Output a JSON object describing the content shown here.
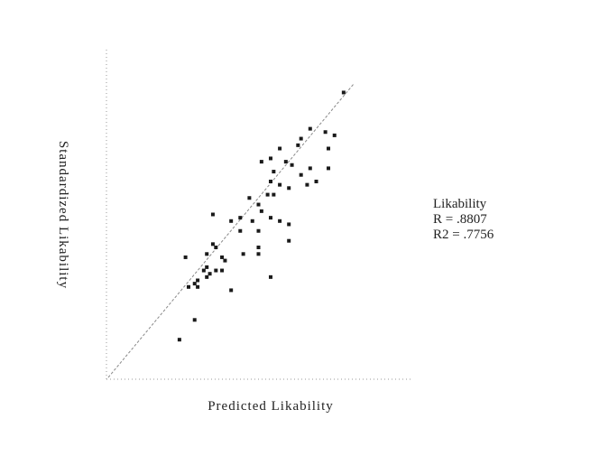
{
  "chart_data": {
    "type": "scatter",
    "x_label": "Predicted Likability",
    "y_label": "Standardized Likability",
    "annotations": [
      "Likability",
      "R  =  .8807",
      "R2 = .7756"
    ],
    "color": "#1a1a1a",
    "xlim": [
      0,
      1
    ],
    "ylim": [
      0,
      1
    ],
    "x": [
      0.78,
      0.67,
      0.72,
      0.75,
      0.64,
      0.63,
      0.73,
      0.57,
      0.54,
      0.51,
      0.59,
      0.61,
      0.55,
      0.67,
      0.64,
      0.73,
      0.54,
      0.57,
      0.6,
      0.66,
      0.69,
      0.53,
      0.55,
      0.5,
      0.47,
      0.51,
      0.44,
      0.48,
      0.54,
      0.57,
      0.6,
      0.35,
      0.41,
      0.44,
      0.5,
      0.6,
      0.35,
      0.36,
      0.38,
      0.33,
      0.39,
      0.5,
      0.45,
      0.5,
      0.33,
      0.36,
      0.32,
      0.34,
      0.38,
      0.26,
      0.29,
      0.3,
      0.3,
      0.27,
      0.41,
      0.54,
      0.33,
      0.29,
      0.24
    ],
    "values": [
      0.87,
      0.76,
      0.75,
      0.74,
      0.73,
      0.71,
      0.7,
      0.7,
      0.67,
      0.66,
      0.66,
      0.65,
      0.63,
      0.64,
      0.62,
      0.64,
      0.6,
      0.59,
      0.58,
      0.59,
      0.6,
      0.56,
      0.56,
      0.53,
      0.55,
      0.51,
      0.49,
      0.48,
      0.49,
      0.48,
      0.47,
      0.5,
      0.48,
      0.45,
      0.45,
      0.42,
      0.41,
      0.4,
      0.37,
      0.38,
      0.36,
      0.4,
      0.38,
      0.38,
      0.34,
      0.33,
      0.33,
      0.32,
      0.33,
      0.37,
      0.29,
      0.28,
      0.3,
      0.28,
      0.27,
      0.31,
      0.31,
      0.18,
      0.12
    ]
  }
}
